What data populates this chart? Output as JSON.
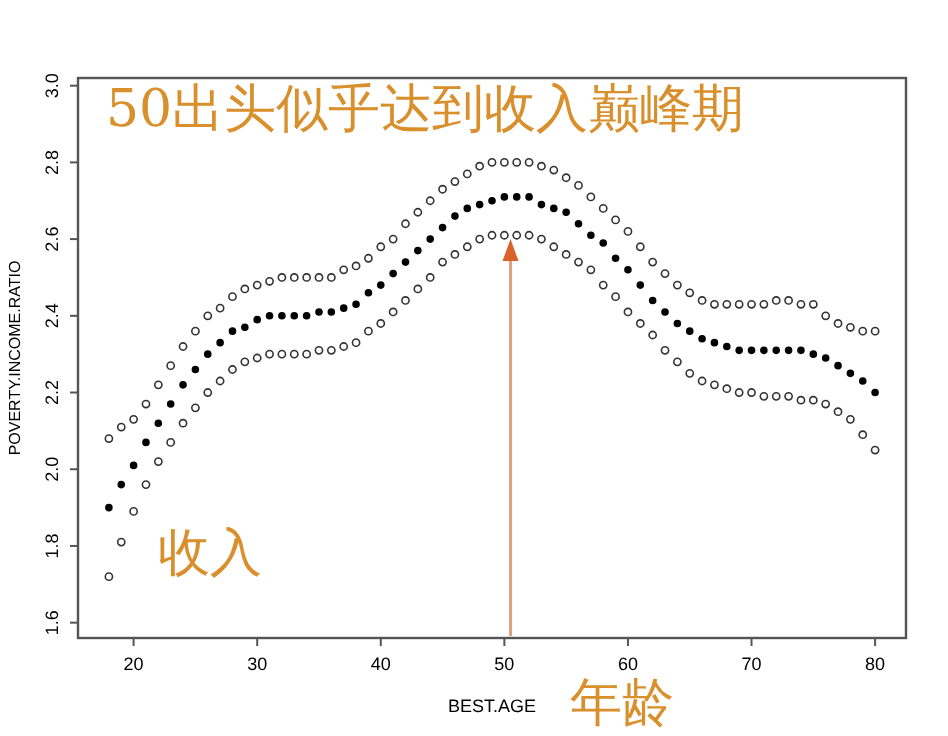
{
  "chart_data": {
    "type": "scatter",
    "xlabel": "BEST.AGE",
    "ylabel": "POVERTY.INCOME.RATIO",
    "x": [
      18,
      19,
      20,
      21,
      22,
      23,
      24,
      25,
      26,
      27,
      28,
      29,
      30,
      31,
      32,
      33,
      34,
      35,
      36,
      37,
      38,
      39,
      40,
      41,
      42,
      43,
      44,
      45,
      46,
      47,
      48,
      49,
      50,
      51,
      52,
      53,
      54,
      55,
      56,
      57,
      58,
      59,
      60,
      61,
      62,
      63,
      64,
      65,
      66,
      67,
      68,
      69,
      70,
      71,
      72,
      73,
      74,
      75,
      76,
      77,
      78,
      79,
      80
    ],
    "series": [
      {
        "color": "#333333",
        "values": [
          2.08,
          2.11,
          2.13,
          2.17,
          2.22,
          2.27,
          2.32,
          2.36,
          2.4,
          2.42,
          2.45,
          2.47,
          2.48,
          2.49,
          2.5,
          2.5,
          2.5,
          2.5,
          2.5,
          2.52,
          2.53,
          2.55,
          2.58,
          2.6,
          2.64,
          2.67,
          2.7,
          2.73,
          2.75,
          2.77,
          2.79,
          2.8,
          2.8,
          2.8,
          2.8,
          2.79,
          2.78,
          2.76,
          2.74,
          2.71,
          2.68,
          2.65,
          2.62,
          2.58,
          2.54,
          2.51,
          2.48,
          2.46,
          2.44,
          2.43,
          2.43,
          2.43,
          2.43,
          2.43,
          2.44,
          2.44,
          2.43,
          2.43,
          2.4,
          2.38,
          2.37,
          2.36,
          2.36
        ]
      },
      {
        "color": "#000000",
        "values": [
          1.9,
          1.96,
          2.01,
          2.07,
          2.12,
          2.17,
          2.22,
          2.26,
          2.3,
          2.33,
          2.36,
          2.37,
          2.39,
          2.4,
          2.4,
          2.4,
          2.4,
          2.41,
          2.41,
          2.42,
          2.43,
          2.46,
          2.48,
          2.51,
          2.54,
          2.57,
          2.6,
          2.63,
          2.66,
          2.68,
          2.69,
          2.7,
          2.71,
          2.71,
          2.71,
          2.69,
          2.68,
          2.67,
          2.64,
          2.61,
          2.59,
          2.55,
          2.52,
          2.48,
          2.44,
          2.41,
          2.38,
          2.36,
          2.34,
          2.33,
          2.32,
          2.31,
          2.31,
          2.31,
          2.31,
          2.31,
          2.31,
          2.3,
          2.29,
          2.27,
          2.25,
          2.23,
          2.2
        ]
      },
      {
        "color": "#333333",
        "values": [
          1.72,
          1.81,
          1.89,
          1.96,
          2.02,
          2.07,
          2.12,
          2.16,
          2.2,
          2.23,
          2.26,
          2.28,
          2.29,
          2.3,
          2.3,
          2.3,
          2.3,
          2.31,
          2.31,
          2.32,
          2.33,
          2.36,
          2.38,
          2.41,
          2.44,
          2.47,
          2.5,
          2.54,
          2.56,
          2.58,
          2.6,
          2.61,
          2.61,
          2.61,
          2.61,
          2.6,
          2.58,
          2.56,
          2.54,
          2.52,
          2.48,
          2.45,
          2.41,
          2.38,
          2.35,
          2.31,
          2.28,
          2.25,
          2.23,
          2.22,
          2.21,
          2.2,
          2.2,
          2.19,
          2.19,
          2.19,
          2.18,
          2.18,
          2.17,
          2.15,
          2.13,
          2.09,
          2.05
        ]
      }
    ],
    "marker": "circle",
    "grid": false,
    "xlim": [
      15.5,
      82.5
    ],
    "ylim": [
      1.56,
      3.02
    ],
    "xticks": [
      20,
      30,
      40,
      50,
      60,
      70,
      80
    ],
    "yticks": [
      1.6,
      1.8,
      {
        "value": 2,
        "label": "2.0"
      },
      2.2,
      2.4,
      2.6,
      2.8,
      {
        "value": 3,
        "label": "3.0"
      }
    ],
    "annotations": [
      {
        "text": "50出头似乎达到收入巅峰期",
        "x": 50.5,
        "y": 2.6
      },
      "收入",
      "年龄"
    ]
  }
}
